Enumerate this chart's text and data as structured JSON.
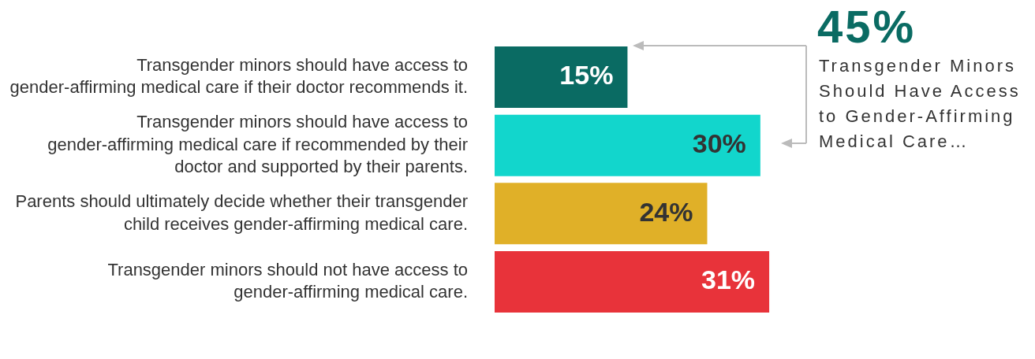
{
  "chart_data": {
    "type": "bar",
    "orientation": "horizontal",
    "categories": [
      "Transgender minors should have access to gender-affirming medical care if their doctor recommends it.",
      "Transgender minors should have access to gender-affirming medical care if recommended by their doctor and supported by their parents.",
      "Parents should ultimately decide whether their transgender child receives gender-affirming medical care.",
      "Transgender minors should not have access to gender-affirming medical care."
    ],
    "values": [
      15,
      30,
      24,
      31
    ],
    "colors": [
      "#0a6b63",
      "#12d6cc",
      "#e0b028",
      "#e8333a"
    ],
    "value_labels": [
      "15%",
      "30%",
      "24%",
      "31%"
    ],
    "annotations": [
      "45%",
      "Transgender Minors Should Have Access to Gender-Affirming Medical Care…"
    ],
    "tick_labels": "y",
    "legend": false
  }
}
